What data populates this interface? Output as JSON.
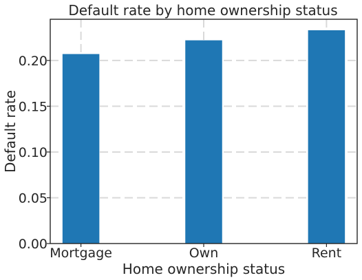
{
  "chart_data": {
    "type": "bar",
    "title": "Default rate by home ownership status",
    "xlabel": "Home ownership status",
    "ylabel": "Default rate",
    "categories": [
      "Mortgage",
      "Own",
      "Rent"
    ],
    "values": [
      0.207,
      0.222,
      0.233
    ],
    "ylim": [
      0,
      0.245
    ],
    "yticks": [
      0.0,
      0.05,
      0.1,
      0.15,
      0.2
    ],
    "ytick_labels": [
      "0.00",
      "0.05",
      "0.10",
      "0.15",
      "0.20"
    ],
    "grid": true,
    "colors": {
      "bar": "#1f77b4"
    }
  }
}
